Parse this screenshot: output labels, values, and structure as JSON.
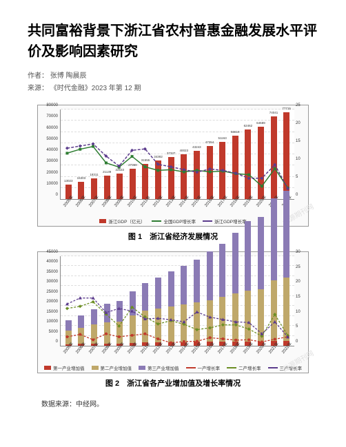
{
  "title": "共同富裕背景下浙江省农村普惠金融发展水平评价及影响因素研究",
  "authors_label": "作者：",
  "authors": "张博 陶晨辰",
  "source_label": "来源：",
  "source": "《时代金融》2023 年第 12 期",
  "chart1": {
    "caption": "图 1　浙江省经济发展情况",
    "y_left_max": 80000,
    "y_left_ticks": [
      0,
      10000,
      20000,
      30000,
      40000,
      50000,
      60000,
      70000,
      80000
    ],
    "y_right_max": 25,
    "y_right_ticks": [
      0,
      5,
      10,
      15,
      20,
      25
    ],
    "years": [
      "2005年",
      "2006年",
      "2007年",
      "2008年",
      "2009年",
      "2010年",
      "2011年",
      "2012年",
      "2013年",
      "2014年",
      "2015年",
      "2016年",
      "2017年",
      "2018年",
      "2019年",
      "2020年",
      "2021年",
      "2022年"
    ],
    "bar_values": [
      13023,
      15303,
      18311,
      21139,
      22533,
      27359,
      31555,
      34382,
      37337,
      40023,
      43243,
      47254,
      51163,
      56619,
      62462,
      64689,
      74041,
      77715
    ],
    "bar_color": "#c0392b",
    "line1_values": [
      12.8,
      13.9,
      14.7,
      10.1,
      8.9,
      11.9,
      9.0,
      8.0,
      8.2,
      7.6,
      8.0,
      7.6,
      7.8,
      7.1,
      6.8,
      3.6,
      8.5,
      3.1
    ],
    "line1_color": "#2e7d32",
    "line1_marker": "square",
    "line2_values": [
      14.2,
      14.8,
      15.4,
      12.0,
      9.2,
      13.6,
      14.0,
      9.7,
      9.0,
      8.2,
      7.5,
      8.4,
      8.0,
      7.2,
      5.8,
      5.8,
      9.6,
      2.9
    ],
    "line2_color": "#5b3b8c",
    "line2_style": "dashed",
    "line2_marker": "diamond",
    "legend": [
      {
        "type": "box",
        "color": "#c0392b",
        "text": "浙江GDP（亿元）"
      },
      {
        "type": "line",
        "color": "#2e7d32",
        "marker": "square",
        "text": "全国GDP增长率"
      },
      {
        "type": "line",
        "color": "#5b3b8c",
        "marker": "diamond",
        "text": "浙江GDP增长率"
      }
    ]
  },
  "chart2": {
    "caption": "图 2　浙江省各产业增加值及增长率情况",
    "y_left_max": 45000,
    "y_left_ticks": [
      0,
      5000,
      10000,
      15000,
      20000,
      25000,
      30000,
      35000,
      40000,
      45000
    ],
    "y_right_max": 30,
    "y_right_ticks": [
      0,
      5,
      10,
      15,
      20,
      25,
      30
    ],
    "years": [
      "2005年",
      "2006年",
      "2007年",
      "2008年",
      "2009年",
      "2010年",
      "2011年",
      "2012年",
      "2013年",
      "2014年",
      "2015年",
      "2016年",
      "2017年",
      "2018年",
      "2019年",
      "2020年",
      "2021年",
      "2022年"
    ],
    "seg1_values": [
      870,
      920,
      980,
      1050,
      1100,
      1350,
      1580,
      1670,
      1780,
      1850,
      1950,
      2000,
      2100,
      2150,
      2200,
      2250,
      2300,
      2350
    ],
    "seg2_values": [
      6900,
      8100,
      9700,
      10800,
      11000,
      14000,
      16200,
      17000,
      18000,
      19000,
      19800,
      21000,
      22500,
      24000,
      25500,
      26000,
      30500,
      32000
    ],
    "seg3_values": [
      5200,
      6300,
      7600,
      9300,
      10400,
      12000,
      13800,
      15700,
      17500,
      19200,
      21500,
      24300,
      26600,
      30500,
      34800,
      36400,
      41200,
      43400
    ],
    "seg1_color": "#c0392b",
    "seg2_color": "#bfa86a",
    "seg3_color": "#8b7bb5",
    "line1_values": [
      3.0,
      3.8,
      2.0,
      4.0,
      3.0,
      3.5,
      4.0,
      2.3,
      1.0,
      1.4,
      1.5,
      2.7,
      2.3,
      1.9,
      2.0,
      1.3,
      2.2,
      3.0
    ],
    "line1_color": "#c0392b",
    "line1_style": "dashed",
    "line2_values": [
      12.5,
      13.2,
      14.7,
      10.6,
      6.6,
      12.9,
      9.7,
      7.3,
      8.4,
      7.2,
      5.4,
      6.0,
      7.0,
      7.0,
      5.6,
      3.2,
      10.5,
      3.4
    ],
    "line2_color": "#6b8e23",
    "line2_style": "dashed",
    "line3_values": [
      14.0,
      16.0,
      16.0,
      11.1,
      12.5,
      11.6,
      9.0,
      9.2,
      8.7,
      8.0,
      11.3,
      9.6,
      8.8,
      8.0,
      7.8,
      4.0,
      8.0,
      2.9
    ],
    "line3_color": "#5b3b8c",
    "line3_style": "dashed",
    "legend": [
      {
        "type": "box",
        "color": "#c0392b",
        "text": "第一产业增加值"
      },
      {
        "type": "box",
        "color": "#bfa86a",
        "text": "第二产业增加值"
      },
      {
        "type": "box",
        "color": "#8b7bb5",
        "text": "第三产业增加值"
      },
      {
        "type": "line",
        "color": "#c0392b",
        "marker": "circle",
        "text": "一产增长率"
      },
      {
        "type": "line",
        "color": "#6b8e23",
        "marker": "diamond",
        "text": "二产增长率"
      },
      {
        "type": "line",
        "color": "#5b3b8c",
        "marker": "triangle",
        "text": "三产增长率"
      }
    ]
  },
  "data_source_label": "数据来源：",
  "data_source": "中经网。"
}
